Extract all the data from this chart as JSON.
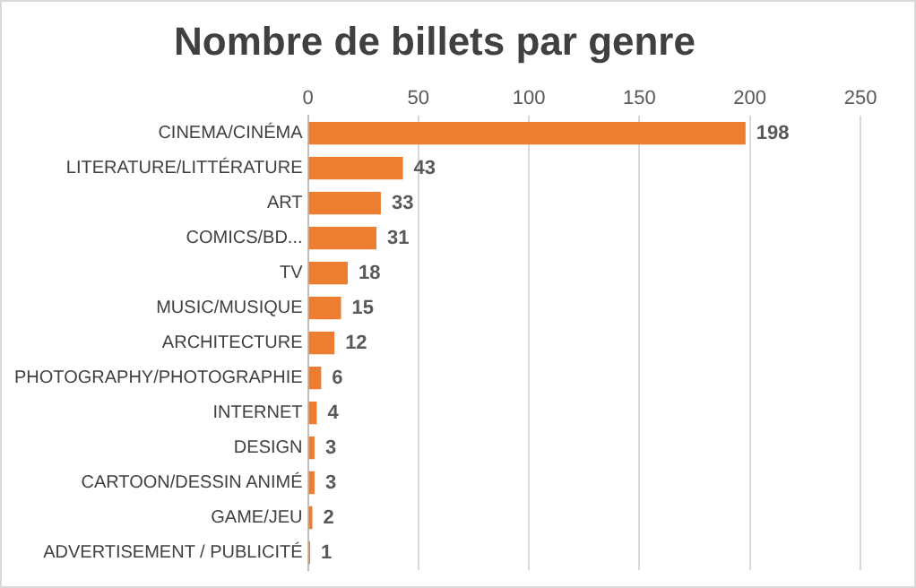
{
  "chart_data": {
    "type": "bar",
    "orientation": "horizontal",
    "title": "Nombre de billets par genre",
    "categories": [
      "CINEMA/CINÉMA",
      "LITERATURE/LITTÉRATURE",
      "ART",
      "COMICS/BD...",
      "TV",
      "MUSIC/MUSIQUE",
      "ARCHITECTURE",
      "PHOTOGRAPHY/PHOTOGRAPHIE",
      "INTERNET",
      "DESIGN",
      "CARTOON/DESSIN ANIMÉ",
      "GAME/JEU",
      "ADVERTISEMENT / PUBLICITÉ"
    ],
    "values": [
      198,
      43,
      33,
      31,
      18,
      15,
      12,
      6,
      4,
      3,
      3,
      2,
      1
    ],
    "color": "#ed7d31",
    "xlim": [
      0,
      250
    ],
    "xticks": [
      0,
      50,
      100,
      150,
      200,
      250
    ],
    "grid": "x",
    "data_labels": true,
    "legend": false
  }
}
